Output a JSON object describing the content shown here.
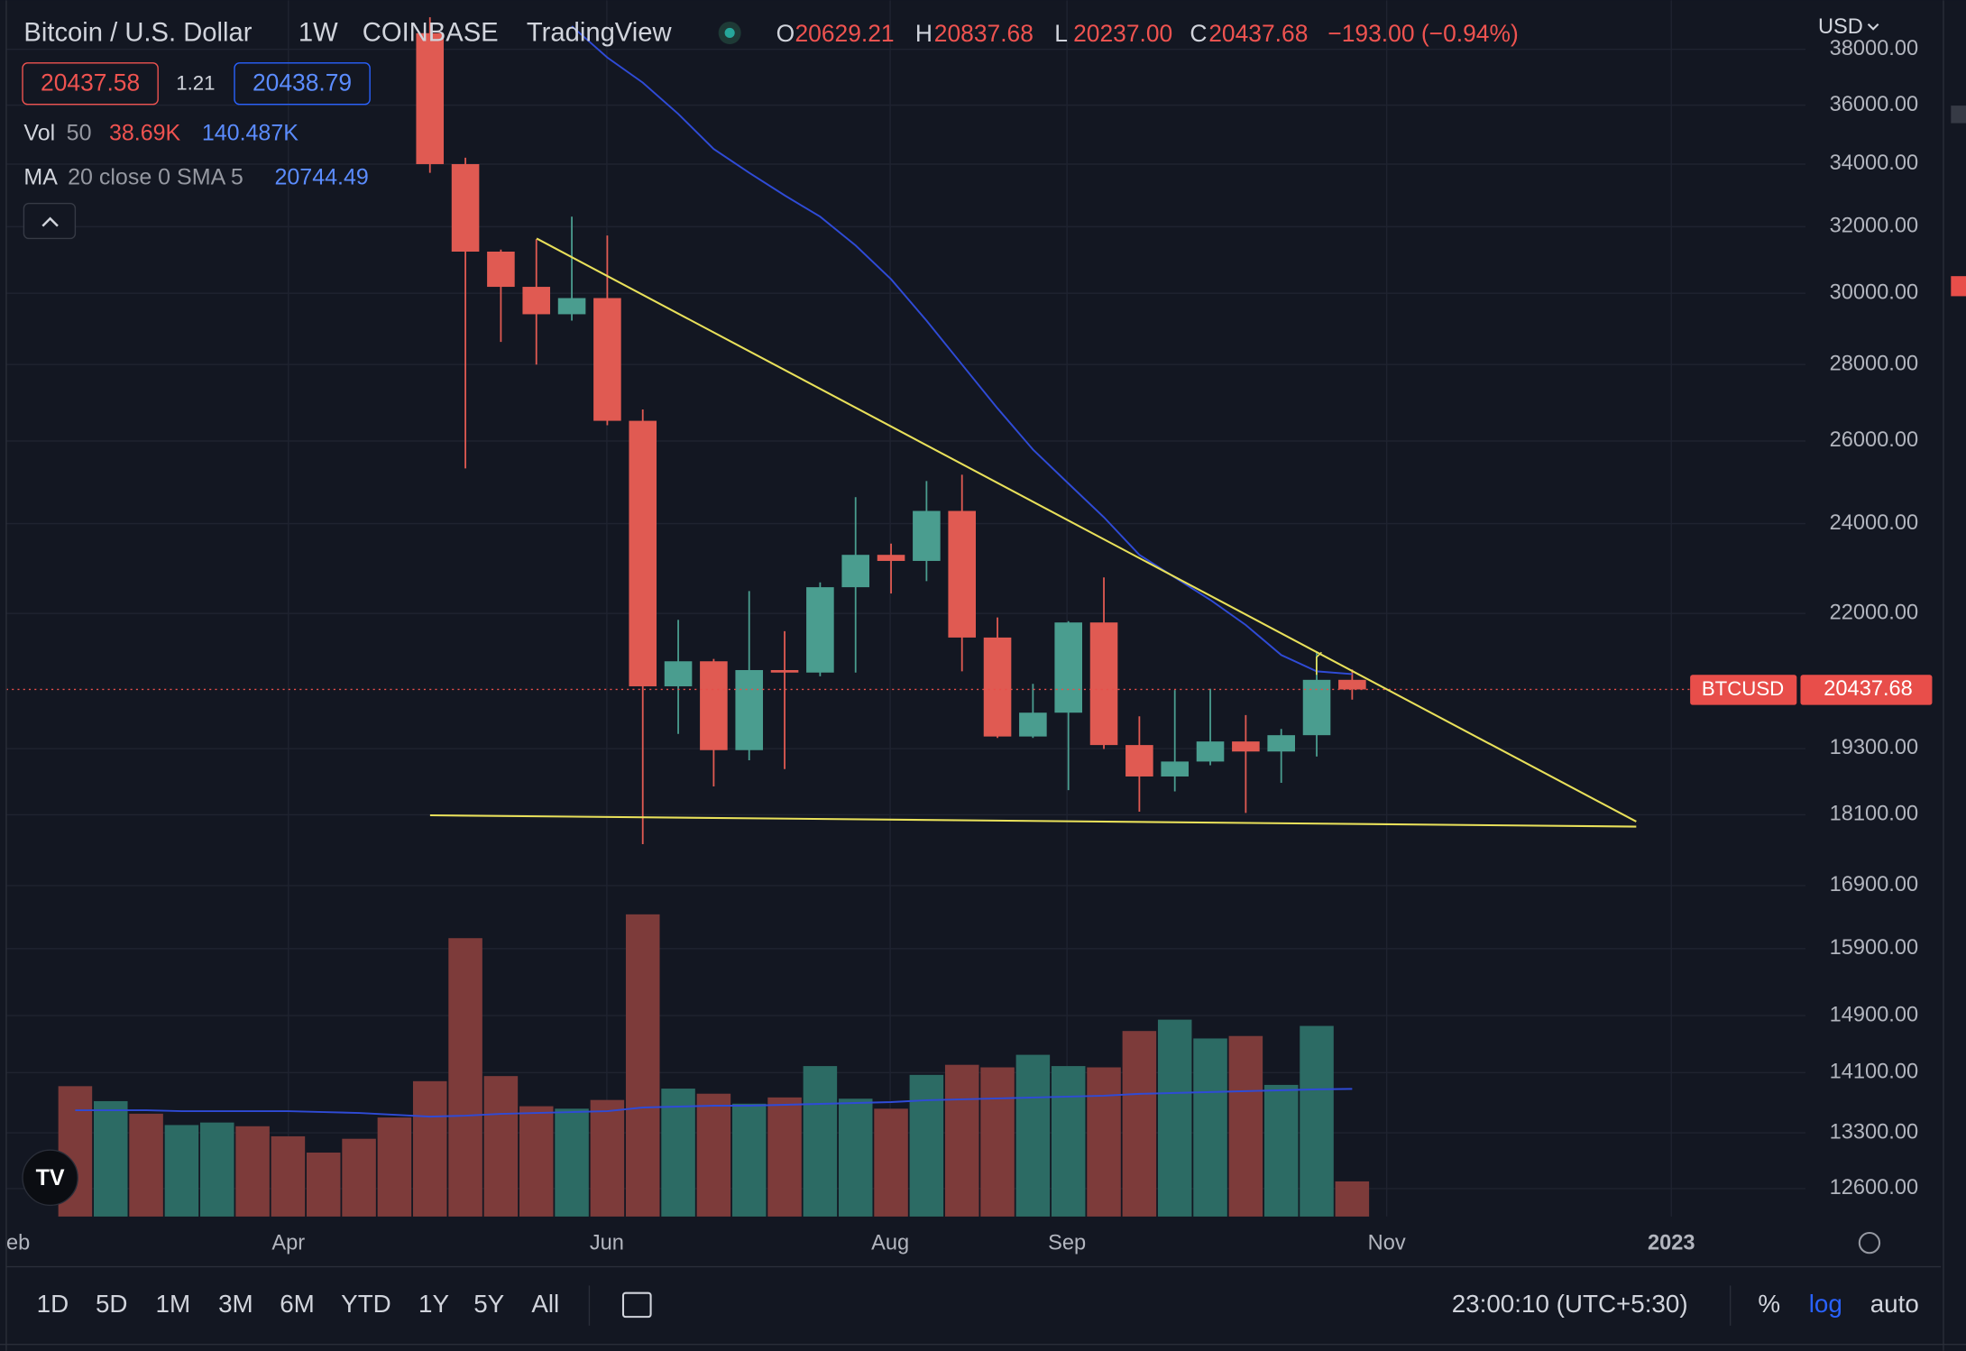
{
  "header": {
    "symbol": "Bitcoin / U.S. Dollar",
    "interval": "1W",
    "exchange": "COINBASE",
    "brand": "TradingView",
    "ohlc": [
      {
        "key": "O",
        "value": "20629.21"
      },
      {
        "key": "H",
        "value": "20837.68"
      },
      {
        "key": "L",
        "value": "20237.00"
      },
      {
        "key": "C",
        "value": "20437.68"
      }
    ],
    "change": "−193.00 (−0.94%)"
  },
  "quote": {
    "bid": "20437.58",
    "spread": "1.21",
    "ask": "20438.79"
  },
  "indicators": {
    "vol": {
      "name": "Vol",
      "length": "50",
      "value": "38.69K",
      "ma": "140.487K"
    },
    "ma": {
      "name": "MA",
      "params": "20 close 0 SMA 5",
      "value": "20744.49"
    }
  },
  "currency": "USD",
  "price_tag": {
    "symbol": "BTCUSD",
    "value": "20437.68"
  },
  "x_labels": [
    "eb",
    "Apr",
    "Jun",
    "Aug",
    "Sep",
    "Nov",
    "2023"
  ],
  "toolbar": {
    "ranges": [
      "1D",
      "5D",
      "1M",
      "3M",
      "6M",
      "YTD",
      "1Y",
      "5Y",
      "All"
    ],
    "time": "23:00:10 (UTC+5:30)",
    "percent": "%",
    "log": "log",
    "auto": "auto"
  },
  "chart_data": {
    "type": "candlestick",
    "log": true,
    "grid": true,
    "categories": [
      null,
      null,
      null,
      null,
      null,
      null,
      null,
      null,
      null,
      null,
      null,
      null,
      null,
      null,
      null,
      null,
      null,
      null,
      null,
      null,
      null,
      null,
      null,
      null,
      null,
      null,
      null,
      null,
      null,
      null,
      null,
      null,
      null,
      null,
      null,
      null,
      null
    ],
    "open": [
      null,
      null,
      null,
      null,
      null,
      null,
      null,
      null,
      null,
      null,
      38600,
      34001,
      31237,
      30189,
      29398,
      29862,
      26514,
      20500,
      21003,
      19271,
      20825,
      20775,
      22566,
      23285,
      23148,
      24297,
      21492,
      19527,
      19983,
      21808,
      19366,
      18785,
      19059,
      19433,
      19245,
      19552,
      20629.21
    ],
    "high": [
      null,
      null,
      null,
      null,
      null,
      null,
      null,
      null,
      null,
      null,
      39200,
      34211,
      31300,
      31616,
      32314,
      31730,
      26806,
      21863,
      21050,
      22482,
      21625,
      22673,
      24624,
      23540,
      25012,
      25165,
      21914,
      20549,
      21835,
      22781,
      19912,
      20426,
      20452,
      19937,
      19670,
      21182,
      20837.68
    ],
    "low": [
      null,
      null,
      null,
      null,
      null,
      null,
      null,
      null,
      null,
      null,
      33717,
      25319,
      28620,
      28000,
      29217,
      26400,
      17593,
      19576,
      18605,
      19083,
      18921,
      20700,
      20775,
      22429,
      22699,
      20800,
      19500,
      19500,
      18537,
      19292,
      18155,
      18515,
      18990,
      18133,
      18670,
      19152,
      20237
    ],
    "close": [
      null,
      null,
      null,
      null,
      null,
      null,
      null,
      null,
      null,
      null,
      34001,
      31237,
      30189,
      29398,
      29862,
      26514,
      20500,
      21003,
      19271,
      20825,
      20775,
      22566,
      23285,
      23148,
      24297,
      21492,
      19527,
      19983,
      21808,
      19366,
      18785,
      19059,
      19433,
      19245,
      19552,
      20629,
      20437.68
    ],
    "ma": [
      null,
      null,
      null,
      null,
      null,
      null,
      null,
      null,
      null,
      null,
      null,
      null,
      null,
      null,
      38862,
      37700,
      36795,
      35695,
      34503,
      33717,
      32987,
      32314,
      31424,
      30413,
      29217,
      28000,
      26838,
      25787,
      24951,
      24149,
      23285,
      22781,
      22291,
      21755,
      21132,
      20800,
      20744.49
    ],
    "volume": [
      143.5,
      127.0,
      113.2,
      100.7,
      103.5,
      99.4,
      88.3,
      70.4,
      85.6,
      109.0,
      149.0,
      306.4,
      154.6,
      121.4,
      118.7,
      128.3,
      332.6,
      140.8,
      135.2,
      124.2,
      131.1,
      165.6,
      129.7,
      118.7,
      155.9,
      167.0,
      164.2,
      178.0,
      165.6,
      164.2,
      204.2,
      216.7,
      196.0,
      198.7,
      144.9,
      209.8,
      38.69
    ],
    "volume_ma": [
      117,
      117,
      117,
      116,
      116,
      116,
      116,
      115,
      114,
      112,
      110,
      111,
      113,
      114,
      115,
      116,
      120,
      121,
      122,
      122,
      123,
      124,
      125,
      126,
      128,
      129,
      130,
      131,
      132,
      133,
      135,
      136,
      137,
      138,
      139,
      140,
      140.487
    ],
    "volume_colors": [
      "#7d3b3a",
      "#2c6b64",
      "#7d3b3a",
      "#2c6b64",
      "#2c6b64",
      "#7d3b3a",
      "#7d3b3a",
      "#7d3b3a",
      "#7d3b3a",
      "#7d3b3a",
      "#7d3b3a",
      "#7d3b3a",
      "#7d3b3a",
      "#7d3b3a",
      "#2c6b64",
      "#7d3b3a",
      "#7d3b3a",
      "#2c6b64",
      "#7d3b3a",
      "#2c6b64",
      "#7d3b3a",
      "#2c6b64",
      "#2c6b64",
      "#7d3b3a",
      "#2c6b64",
      "#7d3b3a",
      "#7d3b3a",
      "#2c6b64",
      "#2c6b64",
      "#7d3b3a",
      "#7d3b3a",
      "#2c6b64",
      "#2c6b64",
      "#7d3b3a",
      "#2c6b64",
      "#2c6b64",
      "#7d3b3a"
    ],
    "volume_ylim": [
      0,
      1338.6
    ],
    "up_color": "#4a9d8f",
    "down_color": "#e05a52",
    "ma_color": "#2f4bd6",
    "ylim": [
      12264,
      39850
    ],
    "yticks": [
      {
        "value": 38000,
        "label": "38000.00"
      },
      {
        "value": 36000,
        "label": "36000.00"
      },
      {
        "value": 34000,
        "label": "34000.00"
      },
      {
        "value": 32000,
        "label": "32000.00"
      },
      {
        "value": 30000,
        "label": "30000.00"
      },
      {
        "value": 28000,
        "label": "28000.00"
      },
      {
        "value": 26000,
        "label": "26000.00"
      },
      {
        "value": 24000,
        "label": "24000.00"
      },
      {
        "value": 22000,
        "label": "22000.00"
      },
      {
        "value": 19300,
        "label": "19300.00"
      },
      {
        "value": 18100,
        "label": "18100.00"
      },
      {
        "value": 16900,
        "label": "16900.00"
      },
      {
        "value": 15900,
        "label": "15900.00"
      },
      {
        "value": 14900,
        "label": "14900.00"
      },
      {
        "value": 14100,
        "label": "14100.00"
      },
      {
        "value": 13300,
        "label": "13300.00"
      },
      {
        "value": 12600,
        "label": "12600.00"
      }
    ]
  }
}
